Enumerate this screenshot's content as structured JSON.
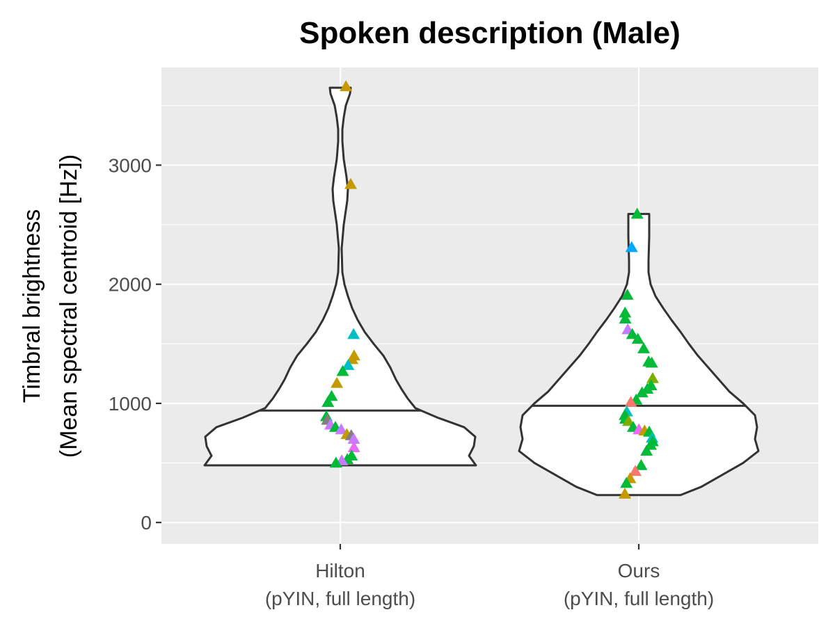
{
  "chart_data": {
    "type": "violin",
    "title": "Spoken description (Male)",
    "ylabel_lines": [
      "Timbral brightness",
      "(Mean spectral centroid [Hz])"
    ],
    "xlabel": "",
    "ylim": [
      -180,
      3820
    ],
    "y_ticks": [
      0,
      1000,
      2000,
      3000
    ],
    "grid": true,
    "legend": "none",
    "categories": [
      {
        "id": "hilton",
        "label_lines": [
          "Hilton",
          "(pYIN, full length)"
        ]
      },
      {
        "id": "ours",
        "label_lines": [
          "Ours",
          "(pYIN, full length)"
        ]
      }
    ],
    "colors": {
      "panel_background": "#ebebeb",
      "grid_major": "#ffffff",
      "violin_fill": "#ffffff",
      "violin_outline": "#333333",
      "tick_text": "#4d4d4d"
    },
    "series": [
      {
        "category": "hilton",
        "median": 940,
        "range": [
          480,
          3650
        ],
        "density": [
          [
            480,
            195
          ],
          [
            560,
            185
          ],
          [
            640,
            192
          ],
          [
            720,
            194
          ],
          [
            800,
            178
          ],
          [
            880,
            140
          ],
          [
            960,
            108
          ],
          [
            1040,
            97
          ],
          [
            1120,
            88
          ],
          [
            1200,
            80
          ],
          [
            1300,
            72
          ],
          [
            1400,
            62
          ],
          [
            1500,
            48
          ],
          [
            1600,
            35
          ],
          [
            1700,
            25
          ],
          [
            1800,
            17
          ],
          [
            1900,
            11
          ],
          [
            2000,
            6
          ],
          [
            2100,
            3
          ],
          [
            2300,
            2
          ],
          [
            2500,
            5
          ],
          [
            2700,
            10
          ],
          [
            2800,
            11
          ],
          [
            2900,
            9
          ],
          [
            3050,
            5
          ],
          [
            3200,
            3
          ],
          [
            3300,
            3
          ],
          [
            3400,
            5
          ],
          [
            3500,
            8
          ],
          [
            3600,
            14
          ],
          [
            3650,
            15
          ]
        ],
        "points": [
          {
            "y": 3660,
            "color": "#c49a00"
          },
          {
            "y": 2840,
            "color": "#c49a00"
          },
          {
            "y": 1580,
            "color": "#00bfc4"
          },
          {
            "y": 1400,
            "color": "#c49a00"
          },
          {
            "y": 1370,
            "color": "#c49a00"
          },
          {
            "y": 1320,
            "color": "#00bfc4"
          },
          {
            "y": 1270,
            "color": "#00ba38"
          },
          {
            "y": 1170,
            "color": "#c49a00"
          },
          {
            "y": 1060,
            "color": "#00ba38"
          },
          {
            "y": 1010,
            "color": "#00ba38"
          },
          {
            "y": 890,
            "color": "#00ba38"
          },
          {
            "y": 860,
            "color": "#808080"
          },
          {
            "y": 820,
            "color": "#c77cff"
          },
          {
            "y": 800,
            "color": "#00ba38"
          },
          {
            "y": 780,
            "color": "#c77cff"
          },
          {
            "y": 740,
            "color": "#c49a00"
          },
          {
            "y": 730,
            "color": "#808080"
          },
          {
            "y": 700,
            "color": "#c77cff"
          },
          {
            "y": 630,
            "color": "#e76bf3"
          },
          {
            "y": 560,
            "color": "#00ba38"
          },
          {
            "y": 530,
            "color": "#00ba38"
          },
          {
            "y": 520,
            "color": "#c77cff"
          },
          {
            "y": 500,
            "color": "#00ba38"
          }
        ]
      },
      {
        "category": "ours",
        "median": 980,
        "range": [
          230,
          2590
        ],
        "density": [
          [
            230,
            60
          ],
          [
            300,
            90
          ],
          [
            400,
            120
          ],
          [
            500,
            150
          ],
          [
            600,
            172
          ],
          [
            700,
            167
          ],
          [
            800,
            170
          ],
          [
            900,
            167
          ],
          [
            1000,
            150
          ],
          [
            1100,
            130
          ],
          [
            1200,
            115
          ],
          [
            1300,
            100
          ],
          [
            1400,
            85
          ],
          [
            1500,
            72
          ],
          [
            1600,
            60
          ],
          [
            1700,
            47
          ],
          [
            1800,
            35
          ],
          [
            1900,
            24
          ],
          [
            2000,
            17
          ],
          [
            2100,
            14
          ],
          [
            2200,
            14
          ],
          [
            2400,
            15
          ],
          [
            2590,
            15
          ]
        ],
        "points": [
          {
            "y": 2590,
            "color": "#00ba38"
          },
          {
            "y": 2310,
            "color": "#00a9ff"
          },
          {
            "y": 1910,
            "color": "#00ba38"
          },
          {
            "y": 1760,
            "color": "#00ba38"
          },
          {
            "y": 1710,
            "color": "#00ba38"
          },
          {
            "y": 1620,
            "color": "#c77cff"
          },
          {
            "y": 1580,
            "color": "#00ba38"
          },
          {
            "y": 1540,
            "color": "#00ba38"
          },
          {
            "y": 1460,
            "color": "#00ba38"
          },
          {
            "y": 1350,
            "color": "#00ba38"
          },
          {
            "y": 1340,
            "color": "#00ba38"
          },
          {
            "y": 1210,
            "color": "#7cae00"
          },
          {
            "y": 1150,
            "color": "#00ba38"
          },
          {
            "y": 1120,
            "color": "#00ba38"
          },
          {
            "y": 1090,
            "color": "#00ba38"
          },
          {
            "y": 1030,
            "color": "#00ba38"
          },
          {
            "y": 1010,
            "color": "#f8766d"
          },
          {
            "y": 930,
            "color": "#00bfc4"
          },
          {
            "y": 900,
            "color": "#00ba38"
          },
          {
            "y": 870,
            "color": "#00ba38"
          },
          {
            "y": 850,
            "color": "#7cae00"
          },
          {
            "y": 800,
            "color": "#00ba38"
          },
          {
            "y": 780,
            "color": "#e76bf3"
          },
          {
            "y": 770,
            "color": "#c49a00"
          },
          {
            "y": 760,
            "color": "#00ba38"
          },
          {
            "y": 710,
            "color": "#00bfc4"
          },
          {
            "y": 680,
            "color": "#00ba38"
          },
          {
            "y": 650,
            "color": "#00ba38"
          },
          {
            "y": 600,
            "color": "#00ba38"
          },
          {
            "y": 480,
            "color": "#00ba38"
          },
          {
            "y": 430,
            "color": "#f8766d"
          },
          {
            "y": 370,
            "color": "#c49a00"
          },
          {
            "y": 330,
            "color": "#00ba38"
          },
          {
            "y": 240,
            "color": "#c49a00"
          }
        ]
      }
    ]
  }
}
